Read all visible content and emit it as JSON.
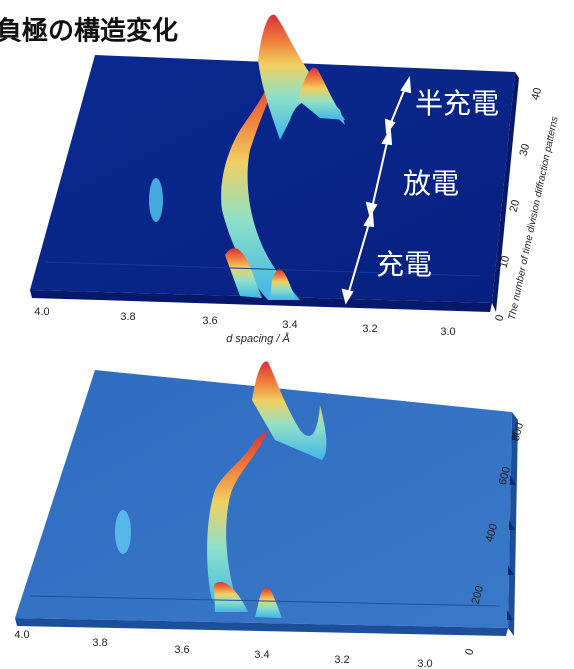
{
  "title": "負極の構造変化",
  "top_plot": {
    "x_ticks": [
      "4.0",
      "3.8",
      "3.6",
      "3.4",
      "3.2",
      "3.0"
    ],
    "x_label": "d spacing / Å",
    "y_ticks": [
      "0",
      "10",
      "20",
      "30",
      "40"
    ],
    "y_label": "The number of time division diffraction patterns",
    "annotations": [
      "半充電",
      "放電",
      "充電"
    ]
  },
  "bottom_plot": {
    "x_ticks": [
      "4.0",
      "3.8",
      "3.6",
      "3.4",
      "3.2",
      "3.0"
    ],
    "y_ticks": [
      "0",
      "200",
      "400",
      "600",
      "800"
    ]
  }
}
